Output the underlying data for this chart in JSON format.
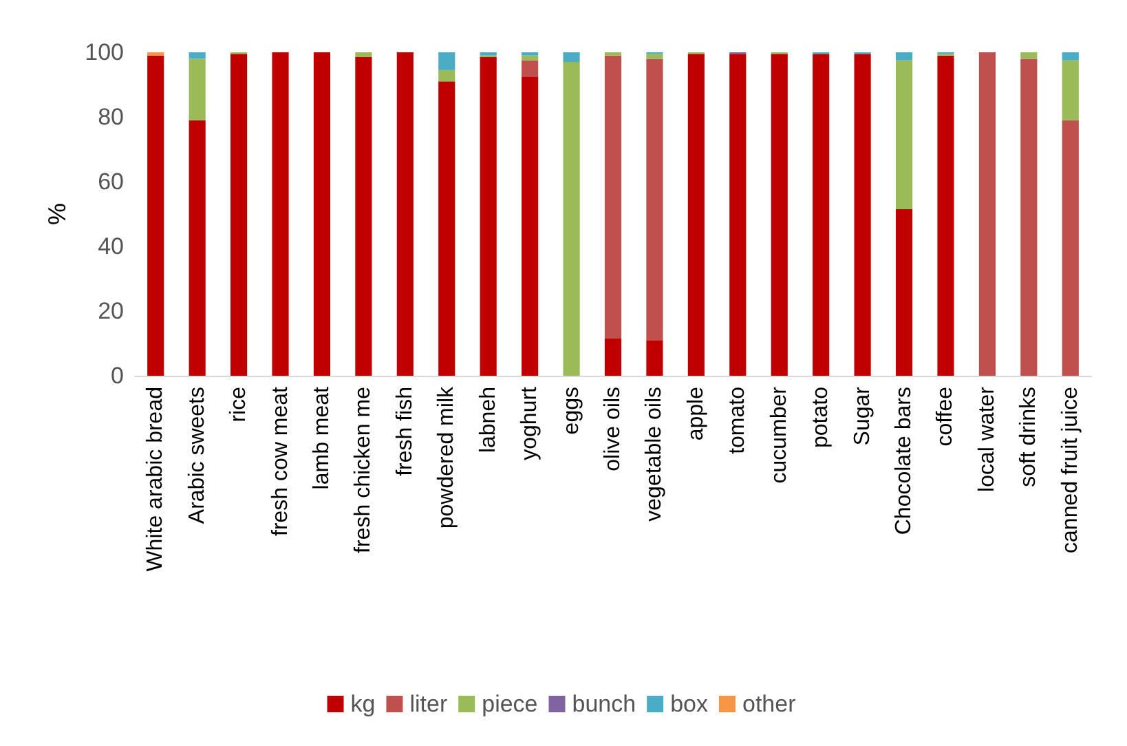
{
  "chart_data": {
    "type": "bar",
    "stacked": true,
    "ylabel": "%",
    "categories": [
      "White arabic bread",
      "Arabic sweets",
      "rice",
      "fresh cow meat",
      "lamb meat",
      "fresh chicken me",
      "fresh fish",
      "powdered milk",
      "labneh",
      "yoghurt",
      "eggs",
      "olive oils",
      "vegetable oils",
      "apple",
      "tomato",
      "cucumber",
      "potato",
      "Sugar",
      "Chocolate bars",
      "coffee",
      "local water",
      "soft drinks",
      "canned fruit juice"
    ],
    "series": [
      {
        "name": "kg",
        "color": "#c00000",
        "values": [
          99,
          79,
          99.5,
          100,
          100,
          98.5,
          100,
          91,
          98.5,
          92.5,
          0,
          11.5,
          11,
          99.5,
          99.5,
          99.5,
          99.5,
          99.5,
          51.5,
          99,
          0,
          0,
          0
        ]
      },
      {
        "name": "liter",
        "color": "#c0504d",
        "values": [
          0,
          0,
          0,
          0,
          0,
          0,
          0,
          0,
          0,
          5,
          0,
          87.5,
          87,
          0,
          0,
          0,
          0,
          0,
          0,
          0,
          100,
          98,
          79
        ]
      },
      {
        "name": "piece",
        "color": "#9bbb59",
        "values": [
          0,
          19,
          0.5,
          0,
          0,
          1.5,
          0,
          3.5,
          0.5,
          1.5,
          97,
          1,
          1.5,
          0.5,
          0,
          0.5,
          0,
          0,
          46,
          0.5,
          0,
          2,
          18.5
        ]
      },
      {
        "name": "bunch",
        "color": "#8064a2",
        "values": [
          0,
          0,
          0,
          0,
          0,
          0,
          0,
          0,
          0,
          0,
          0,
          0,
          0,
          0,
          0.5,
          0,
          0,
          0,
          0,
          0,
          0,
          0,
          0
        ]
      },
      {
        "name": "box",
        "color": "#4bacc6",
        "values": [
          0,
          2,
          0,
          0,
          0,
          0,
          0,
          5.5,
          1,
          1,
          3,
          0,
          0.5,
          0,
          0,
          0,
          0.5,
          0.5,
          2.5,
          0.5,
          0,
          0,
          2.5
        ]
      },
      {
        "name": "other",
        "color": "#f79646",
        "values": [
          1,
          0,
          0,
          0,
          0,
          0,
          0,
          0,
          0,
          0,
          0,
          0,
          0,
          0,
          0,
          0,
          0,
          0,
          0,
          0,
          0,
          0,
          0
        ]
      }
    ],
    "ylim": [
      0,
      100
    ],
    "yticks": [
      0,
      20,
      40,
      60,
      80,
      100
    ],
    "grid": false,
    "legend": "bottom"
  }
}
